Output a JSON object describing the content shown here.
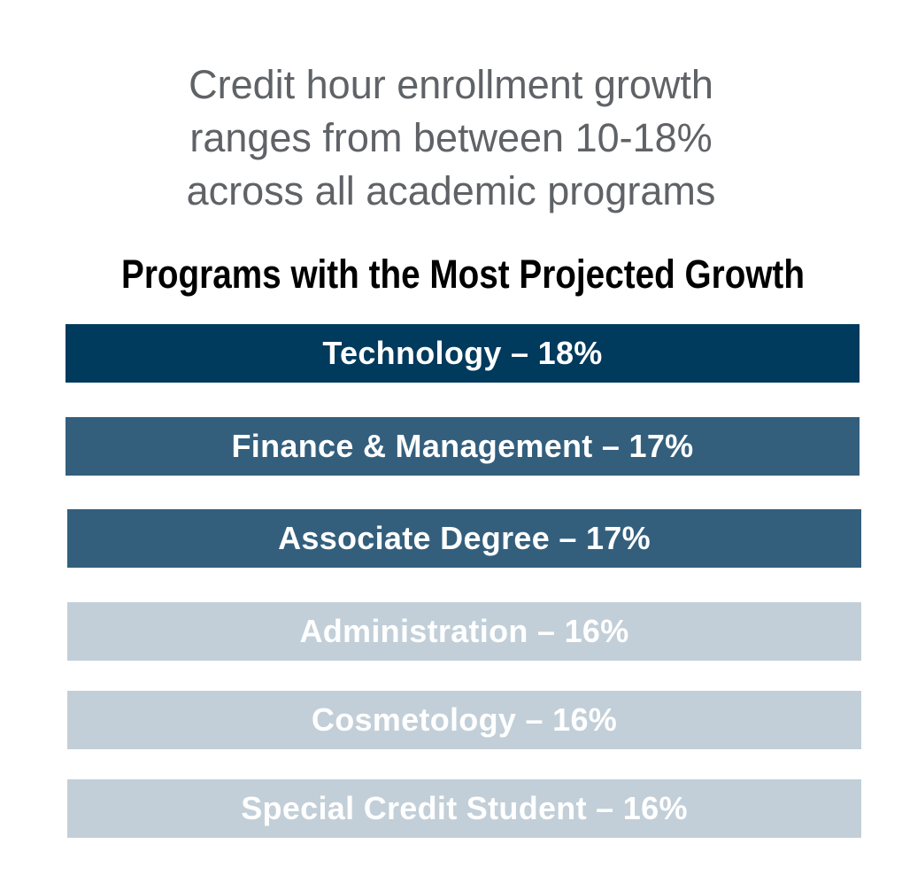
{
  "headline": {
    "line1": "Credit hour enrollment growth",
    "line2": "ranges from between 10-18%",
    "line3": "across all academic programs"
  },
  "subtitle": "Programs with the Most Projected Growth",
  "programs": [
    {
      "label": "Technology – 18%",
      "color": "#003a5d"
    },
    {
      "label": "Finance & Management – 17%",
      "color": "#335f7d"
    },
    {
      "label": "Associate Degree – 17%",
      "color": "#335f7d"
    },
    {
      "label": "Administration – 16%",
      "color": "#c2cfd8"
    },
    {
      "label": "Cosmetology – 16%",
      "color": "#c2cfd8"
    },
    {
      "label": "Special Credit Student – 16%",
      "color": "#c2cfd8"
    }
  ]
}
